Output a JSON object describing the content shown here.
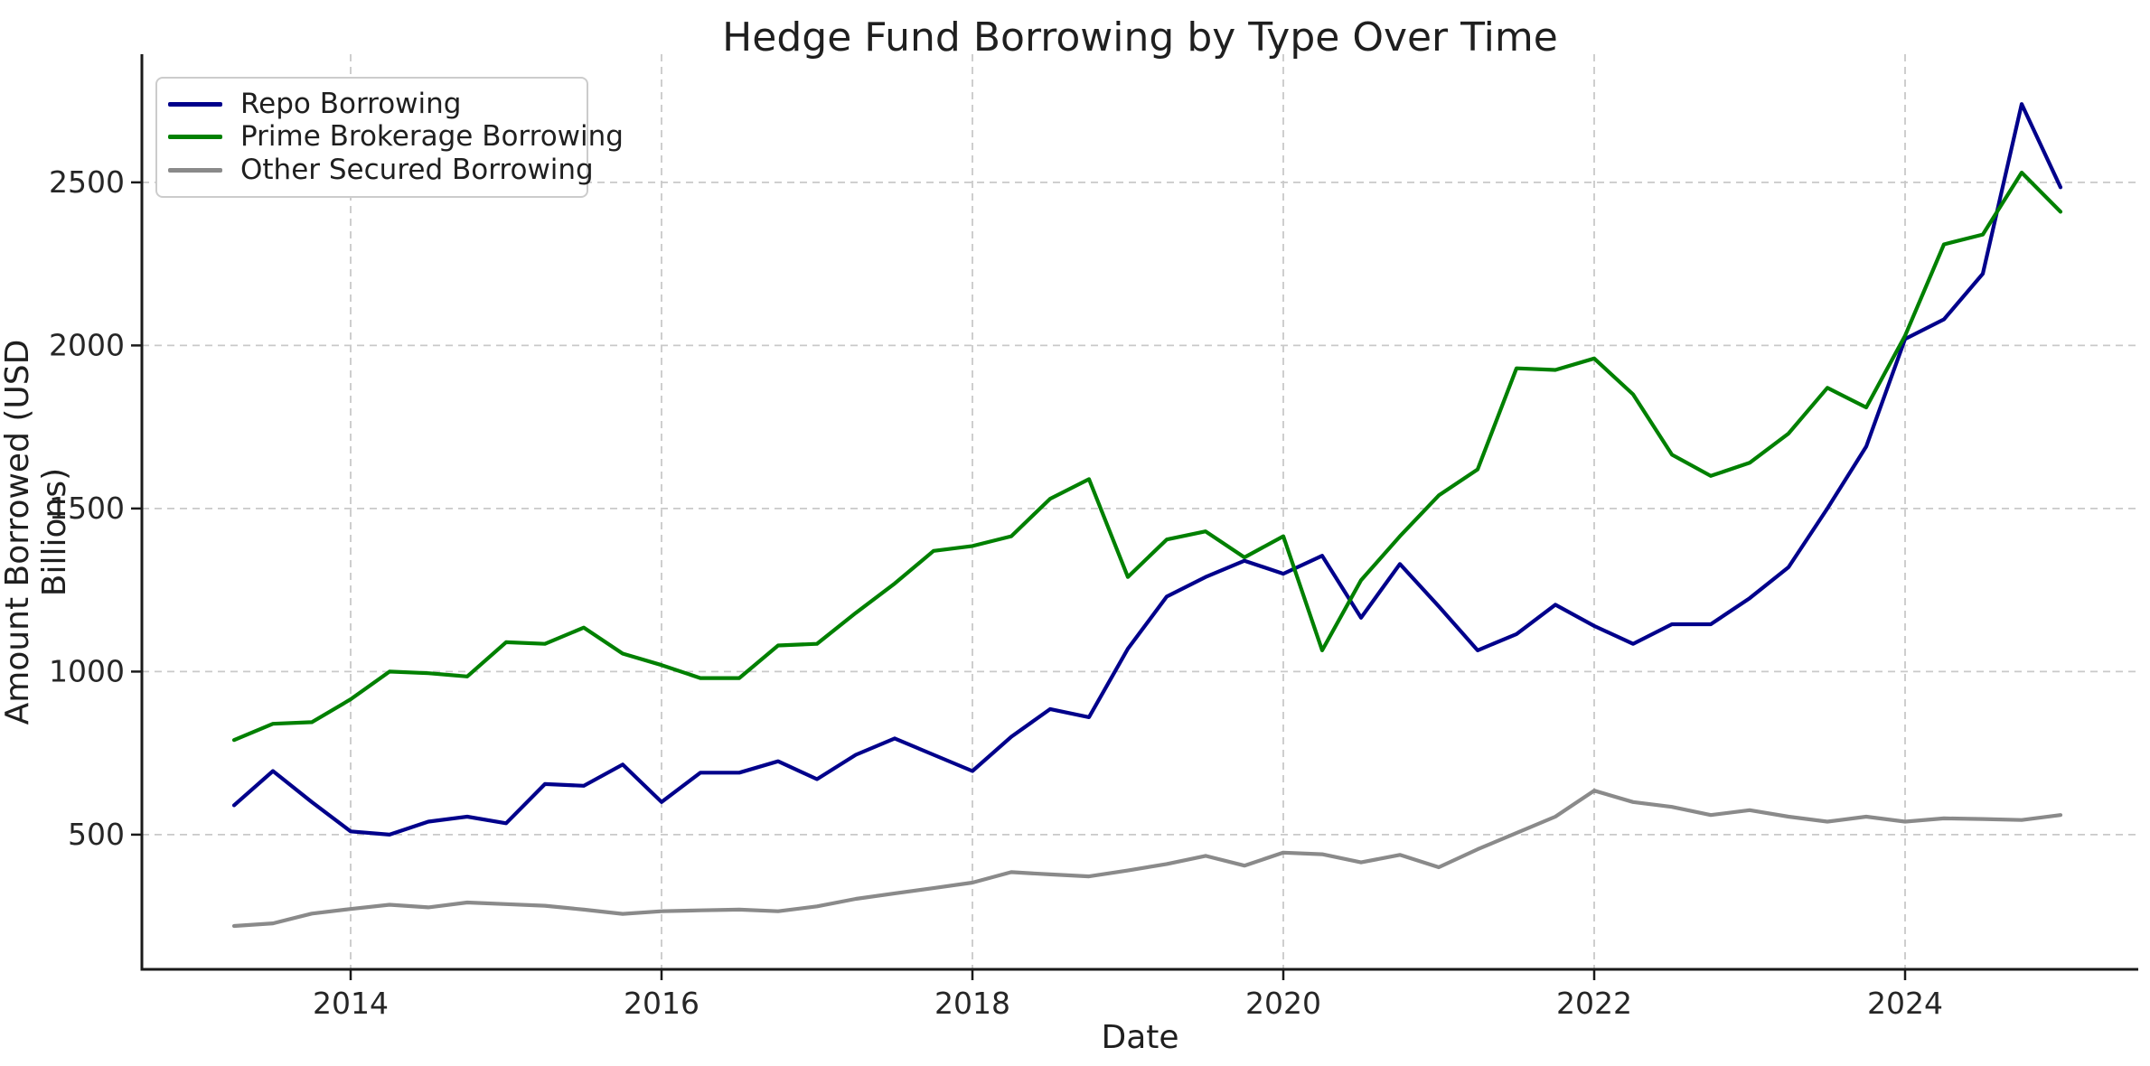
{
  "title": "Hedge Fund Borrowing by Type Over Time",
  "chart_data": {
    "type": "line",
    "title": "Hedge Fund Borrowing by Type Over Time",
    "xlabel": "Date",
    "ylabel": "Amount Borrowed (USD Billions)",
    "x_unit": "decimal_year_quarterly",
    "grid": true,
    "grid_style": "dashed",
    "legend_position": "upper left",
    "xlim": [
      2012.657,
      2025.5
    ],
    "ylim": [
      87,
      2893
    ],
    "x_ticks": [
      2014,
      2016,
      2018,
      2020,
      2022,
      2024
    ],
    "y_ticks": [
      500,
      1000,
      1500,
      2000,
      2500
    ],
    "x": [
      2013.25,
      2013.5,
      2013.75,
      2014.0,
      2014.25,
      2014.5,
      2014.75,
      2015.0,
      2015.25,
      2015.5,
      2015.75,
      2016.0,
      2016.25,
      2016.5,
      2016.75,
      2017.0,
      2017.25,
      2017.5,
      2017.75,
      2018.0,
      2018.25,
      2018.5,
      2018.75,
      2019.0,
      2019.25,
      2019.5,
      2019.75,
      2020.0,
      2020.25,
      2020.5,
      2020.75,
      2021.0,
      2021.25,
      2021.5,
      2021.75,
      2022.0,
      2022.25,
      2022.5,
      2022.75,
      2023.0,
      2023.25,
      2023.5,
      2023.75,
      2024.0,
      2024.25,
      2024.5,
      2024.75,
      2025.0
    ],
    "series": [
      {
        "name": "Repo Borrowing",
        "color": "#00008B",
        "values": [
          590,
          695,
          600,
          510,
          500,
          540,
          555,
          535,
          655,
          650,
          715,
          600,
          690,
          690,
          725,
          670,
          745,
          795,
          745,
          695,
          800,
          885,
          860,
          1070,
          1230,
          1290,
          1340,
          1300,
          1355,
          1165,
          1330,
          1200,
          1065,
          1115,
          1205,
          1140,
          1085,
          1145,
          1145,
          1225,
          1320,
          1500,
          1690,
          2020,
          2080,
          2220,
          2740,
          2485
        ]
      },
      {
        "name": "Prime Brokerage Borrowing",
        "color": "#008000",
        "values": [
          790,
          840,
          845,
          915,
          1000,
          995,
          985,
          1090,
          1085,
          1135,
          1055,
          1020,
          980,
          980,
          1080,
          1085,
          1180,
          1270,
          1370,
          1385,
          1415,
          1530,
          1590,
          1290,
          1405,
          1430,
          1350,
          1415,
          1065,
          1280,
          1415,
          1540,
          1620,
          1930,
          1925,
          1960,
          1850,
          1665,
          1600,
          1640,
          1730,
          1870,
          1810,
          2030,
          2310,
          2340,
          2530,
          2410
        ]
      },
      {
        "name": "Other Secured Borrowing",
        "color": "#8a8a8a",
        "values": [
          220,
          228,
          258,
          272,
          285,
          277,
          292,
          287,
          282,
          270,
          257,
          265,
          268,
          270,
          265,
          280,
          303,
          320,
          336,
          353,
          385,
          378,
          372,
          390,
          410,
          435,
          405,
          445,
          440,
          415,
          438,
          400,
          455,
          505,
          555,
          635,
          600,
          585,
          560,
          575,
          555,
          540,
          555,
          540,
          550,
          548,
          545,
          560
        ]
      }
    ],
    "style": {
      "line_width": 4.2,
      "grid_color": "#c9c9c9",
      "spine_color": "#1a1a1a",
      "tick_text_color": "#262626",
      "background": "#ffffff"
    }
  }
}
